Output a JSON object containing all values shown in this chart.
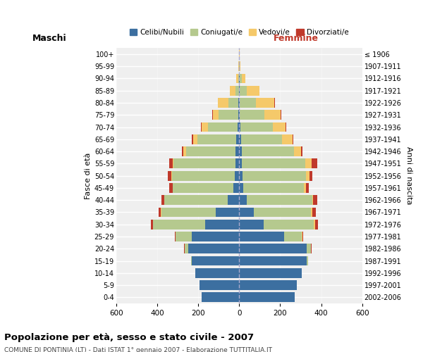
{
  "age_groups": [
    "0-4",
    "5-9",
    "10-14",
    "15-19",
    "20-24",
    "25-29",
    "30-34",
    "35-39",
    "40-44",
    "45-49",
    "50-54",
    "55-59",
    "60-64",
    "65-69",
    "70-74",
    "75-79",
    "80-84",
    "85-89",
    "90-94",
    "95-99",
    "100+"
  ],
  "birth_years": [
    "2002-2006",
    "1997-2001",
    "1992-1996",
    "1987-1991",
    "1982-1986",
    "1977-1981",
    "1972-1976",
    "1967-1971",
    "1962-1966",
    "1957-1961",
    "1952-1956",
    "1947-1951",
    "1942-1946",
    "1937-1941",
    "1932-1936",
    "1927-1931",
    "1922-1926",
    "1917-1921",
    "1912-1916",
    "1907-1911",
    "≤ 1906"
  ],
  "colors": {
    "celibi": "#3c6fa0",
    "coniugati": "#b5c98e",
    "vedovi": "#f5c96a",
    "divorziati": "#c0392b"
  },
  "males": {
    "celibi": [
      185,
      195,
      215,
      230,
      250,
      230,
      165,
      115,
      55,
      28,
      22,
      20,
      20,
      15,
      8,
      5,
      3,
      2,
      1,
      0,
      0
    ],
    "coniugati": [
      0,
      0,
      0,
      5,
      15,
      80,
      255,
      265,
      310,
      295,
      305,
      300,
      240,
      190,
      145,
      95,
      50,
      18,
      5,
      1,
      0
    ],
    "vedovi": [
      0,
      0,
      0,
      0,
      1,
      2,
      2,
      2,
      2,
      2,
      3,
      5,
      12,
      20,
      30,
      30,
      50,
      25,
      8,
      2,
      0
    ],
    "divorziati": [
      0,
      0,
      0,
      0,
      2,
      2,
      8,
      10,
      12,
      15,
      18,
      18,
      8,
      5,
      5,
      2,
      2,
      0,
      0,
      0,
      0
    ]
  },
  "females": {
    "celibi": [
      270,
      280,
      305,
      330,
      330,
      220,
      120,
      70,
      35,
      20,
      15,
      12,
      12,
      10,
      5,
      3,
      2,
      2,
      1,
      0,
      0
    ],
    "coniugati": [
      0,
      0,
      0,
      5,
      20,
      85,
      245,
      280,
      320,
      295,
      310,
      310,
      255,
      200,
      160,
      120,
      80,
      35,
      10,
      2,
      0
    ],
    "vedovi": [
      0,
      0,
      0,
      0,
      1,
      2,
      5,
      5,
      5,
      10,
      18,
      30,
      35,
      50,
      60,
      80,
      90,
      60,
      20,
      5,
      1
    ],
    "divorziati": [
      0,
      0,
      0,
      0,
      3,
      5,
      15,
      20,
      20,
      15,
      15,
      30,
      5,
      5,
      5,
      3,
      2,
      0,
      0,
      0,
      0
    ]
  },
  "title": "Popolazione per età, sesso e stato civile - 2007",
  "subtitle": "COMUNE DI PONTINIA (LT) - Dati ISTAT 1° gennaio 2007 - Elaborazione TUTTITALIA.IT",
  "xlabel_left": "Maschi",
  "xlabel_right": "Femmine",
  "ylabel_left": "Fasce di età",
  "ylabel_right": "Anni di nascita",
  "xlim": 600,
  "bg_color": "#ffffff",
  "plot_bg_color": "#efefef",
  "grid_color": "#ffffff",
  "legend_labels": [
    "Celibi/Nubili",
    "Coniugati/e",
    "Vedovi/e",
    "Divorziati/e"
  ]
}
